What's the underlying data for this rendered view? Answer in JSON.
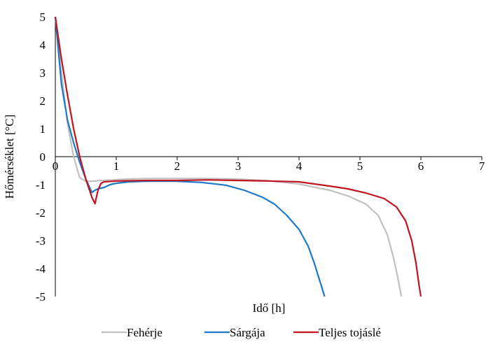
{
  "chart_data": {
    "type": "line",
    "title": "",
    "xlabel": "Idő [h]",
    "ylabel": "Hőmérséklet [°C]",
    "xlim": [
      0,
      7
    ],
    "ylim": [
      -5,
      5
    ],
    "x_ticks": [
      "0",
      "1",
      "2",
      "3",
      "4",
      "5",
      "6",
      "7"
    ],
    "y_ticks": [
      "5",
      "4",
      "3",
      "2",
      "1",
      "0",
      "-1",
      "-2",
      "-3",
      "-4",
      "-5"
    ],
    "grid": false,
    "legend_position": "bottom",
    "series": [
      {
        "name": "Fehérje",
        "color": "#C0C0C0",
        "points": [
          [
            0,
            5
          ],
          [
            0.1,
            3.0
          ],
          [
            0.2,
            1.2
          ],
          [
            0.3,
            0.0
          ],
          [
            0.4,
            -0.75
          ],
          [
            0.5,
            -0.88
          ],
          [
            0.6,
            -0.88
          ],
          [
            0.7,
            -0.86
          ],
          [
            0.8,
            -0.85
          ],
          [
            1.0,
            -0.82
          ],
          [
            1.2,
            -0.8
          ],
          [
            1.5,
            -0.78
          ],
          [
            2.0,
            -0.78
          ],
          [
            2.5,
            -0.78
          ],
          [
            3.0,
            -0.8
          ],
          [
            3.5,
            -0.86
          ],
          [
            4.0,
            -0.98
          ],
          [
            4.5,
            -1.2
          ],
          [
            4.8,
            -1.4
          ],
          [
            5.1,
            -1.7
          ],
          [
            5.3,
            -2.1
          ],
          [
            5.45,
            -2.8
          ],
          [
            5.55,
            -3.6
          ],
          [
            5.62,
            -4.3
          ],
          [
            5.68,
            -5.0
          ]
        ]
      },
      {
        "name": "Sárgája",
        "color": "#1E78C8",
        "points": [
          [
            0,
            5
          ],
          [
            0.1,
            2.6
          ],
          [
            0.2,
            1.3
          ],
          [
            0.3,
            0.5
          ],
          [
            0.4,
            -0.2
          ],
          [
            0.5,
            -0.8
          ],
          [
            0.6,
            -1.28
          ],
          [
            0.65,
            -1.2
          ],
          [
            0.7,
            -1.15
          ],
          [
            0.8,
            -1.1
          ],
          [
            0.9,
            -1.0
          ],
          [
            1.0,
            -0.95
          ],
          [
            1.2,
            -0.9
          ],
          [
            1.5,
            -0.88
          ],
          [
            2.0,
            -0.88
          ],
          [
            2.4,
            -0.92
          ],
          [
            2.8,
            -1.02
          ],
          [
            3.1,
            -1.2
          ],
          [
            3.4,
            -1.45
          ],
          [
            3.6,
            -1.7
          ],
          [
            3.8,
            -2.1
          ],
          [
            4.0,
            -2.6
          ],
          [
            4.15,
            -3.2
          ],
          [
            4.25,
            -3.8
          ],
          [
            4.35,
            -4.5
          ],
          [
            4.42,
            -5.0
          ]
        ]
      },
      {
        "name": "Teljes tojáslé",
        "color": "#C0141E",
        "points": [
          [
            0,
            5
          ],
          [
            0.1,
            3.5
          ],
          [
            0.2,
            2.2
          ],
          [
            0.3,
            1.0
          ],
          [
            0.4,
            0.0
          ],
          [
            0.5,
            -0.8
          ],
          [
            0.6,
            -1.45
          ],
          [
            0.65,
            -1.68
          ],
          [
            0.7,
            -1.2
          ],
          [
            0.75,
            -0.95
          ],
          [
            0.8,
            -0.9
          ],
          [
            1.0,
            -0.87
          ],
          [
            1.5,
            -0.85
          ],
          [
            2.0,
            -0.85
          ],
          [
            2.5,
            -0.83
          ],
          [
            3.0,
            -0.85
          ],
          [
            3.5,
            -0.87
          ],
          [
            4.0,
            -0.9
          ],
          [
            4.5,
            -1.05
          ],
          [
            4.8,
            -1.15
          ],
          [
            5.1,
            -1.3
          ],
          [
            5.4,
            -1.5
          ],
          [
            5.6,
            -1.8
          ],
          [
            5.75,
            -2.3
          ],
          [
            5.85,
            -3.0
          ],
          [
            5.92,
            -3.8
          ],
          [
            5.97,
            -4.6
          ],
          [
            6.0,
            -5.0
          ]
        ]
      }
    ]
  }
}
